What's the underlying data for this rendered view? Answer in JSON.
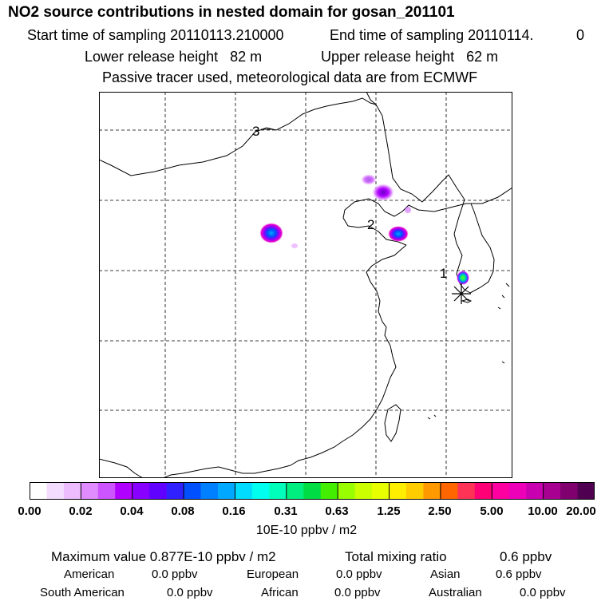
{
  "header": {
    "title": "NO2 source contributions in nested domain for gosan_201101",
    "start_label": "Start time of sampling 20110113.210000",
    "end_label": "End time of sampling 20110114.",
    "end_suffix": "0",
    "lower_release": "Lower release height   82 m",
    "upper_release": "Upper release height   62 m",
    "tracer_note": "Passive tracer used, meteorological data are from ECMWF"
  },
  "map": {
    "frame_color": "#000000",
    "coast_color": "#000000",
    "grid_style": "dashed",
    "point_labels": [
      "3",
      "2",
      "1"
    ],
    "receptor_marker": "asterisk",
    "plumes": [
      {
        "site": "north-china-east",
        "peak_color": "#6a00c8"
      },
      {
        "site": "inner-west",
        "peak_color": "#0088ff"
      },
      {
        "site": "bohai-coast",
        "peak_color": "#0088ff"
      },
      {
        "site": "korea-south",
        "peak_color": "#66ff00"
      }
    ]
  },
  "colorbar": {
    "colors": [
      "#ffffff",
      "#f4dcff",
      "#ecbcff",
      "#e08cff",
      "#cc55ff",
      "#b000ff",
      "#8800ff",
      "#6000ff",
      "#3020ff",
      "#0050ff",
      "#0080ff",
      "#00a8ff",
      "#00dcff",
      "#00ffee",
      "#00ffbb",
      "#00ee80",
      "#00dd44",
      "#44ee00",
      "#99ff00",
      "#ccff00",
      "#e8ff00",
      "#ffee00",
      "#ffcc00",
      "#ff9900",
      "#ff6600",
      "#ff3355",
      "#ff0077",
      "#ff00a0",
      "#ee00b8",
      "#c800b0",
      "#a80090",
      "#800070",
      "#500050"
    ],
    "ticks": [
      "0.00",
      "0.02",
      "0.04",
      "0.08",
      "0.16",
      "0.31",
      "0.63",
      "1.25",
      "2.50",
      "5.00",
      "10.00",
      "20.00"
    ],
    "unit": "10E-10 ppbv / m2"
  },
  "stats": {
    "max_value": "Maximum value  0.877E-10 ppbv / m2",
    "total_label": "Total mixing ratio",
    "total_value": "0.6 ppbv",
    "regions": [
      {
        "name": "American",
        "value": "0.0 ppbv"
      },
      {
        "name": "European",
        "value": "0.0 ppbv"
      },
      {
        "name": "Asian",
        "value": "0.6 ppbv"
      },
      {
        "name": "South American",
        "value": "0.0 ppbv"
      },
      {
        "name": "African",
        "value": "0.0 ppbv"
      },
      {
        "name": "Australian",
        "value": "0.0 ppbv"
      }
    ]
  }
}
